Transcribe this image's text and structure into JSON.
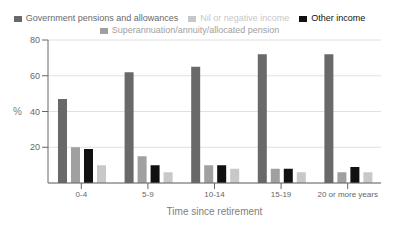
{
  "chart_data": {
    "type": "bar",
    "categories": [
      "0-4",
      "5-9",
      "10-14",
      "15-19",
      "20 or more years"
    ],
    "series": [
      {
        "name": "Government pensions and allowances",
        "color": "#696969",
        "values": [
          47,
          62,
          65,
          72,
          72
        ]
      },
      {
        "name": "Superannuation/annuity/allocated pension",
        "color": "#a0a0a0",
        "values": [
          20,
          15,
          10,
          8,
          6
        ]
      },
      {
        "name": "Other income",
        "color": "#111111",
        "values": [
          19,
          10,
          10,
          8,
          9
        ]
      },
      {
        "name": "Nil or negative income",
        "color": "#c8c8c8",
        "values": [
          10,
          6,
          8,
          6,
          6
        ]
      }
    ],
    "xlabel": "Time since retirement",
    "ylabel": "%",
    "ylim": [
      0,
      80
    ],
    "yticks": [
      20,
      40,
      60,
      80
    ],
    "grid": true,
    "legend": "top"
  }
}
